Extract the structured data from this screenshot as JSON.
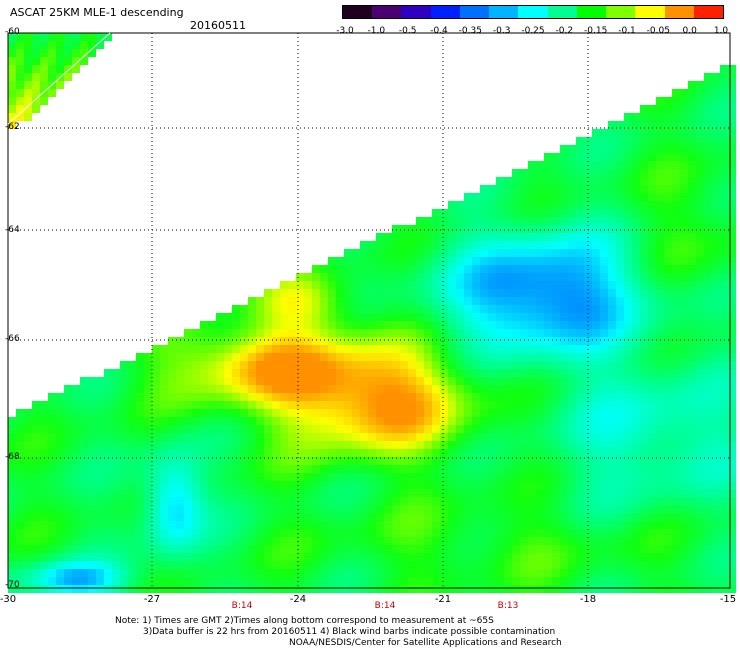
{
  "header": {
    "title": "ASCAT 25KM MLE-1 descending",
    "date": "20160511"
  },
  "colorbar": {
    "labels": [
      "-3.0",
      "-1.0",
      "-0.5",
      "-0.4",
      "-0.35",
      "-0.3",
      "-0.25",
      "-0.2",
      "-0.15",
      "-0.1",
      "-0.05",
      "0.0",
      "1.0"
    ],
    "colors": [
      "#200020",
      "#4a0070",
      "#3000c0",
      "#0020ff",
      "#0070ff",
      "#00b4ff",
      "#00ffff",
      "#00ff90",
      "#00ff00",
      "#80ff00",
      "#ffff00",
      "#ff9000",
      "#ff2000"
    ]
  },
  "map": {
    "x_ticks": [
      "-30",
      "-27",
      "-24",
      "-21",
      "-18",
      "-15"
    ],
    "y_ticks": [
      "-60",
      "-62",
      "-64",
      "-66",
      "-68",
      "-70"
    ],
    "pass_times": [
      "B:14",
      "B:14",
      "B:13"
    ]
  },
  "notes": {
    "line1": "Note: 1) Times are GMT 2)Times along bottom correspond to measurement at ~65S",
    "line2": "3)Data buffer is 22 hrs from 20160511 4) Black wind barbs indicate possible contamination",
    "credit": "NOAA/NESDIS/Center for Satellite Applications and Research"
  }
}
